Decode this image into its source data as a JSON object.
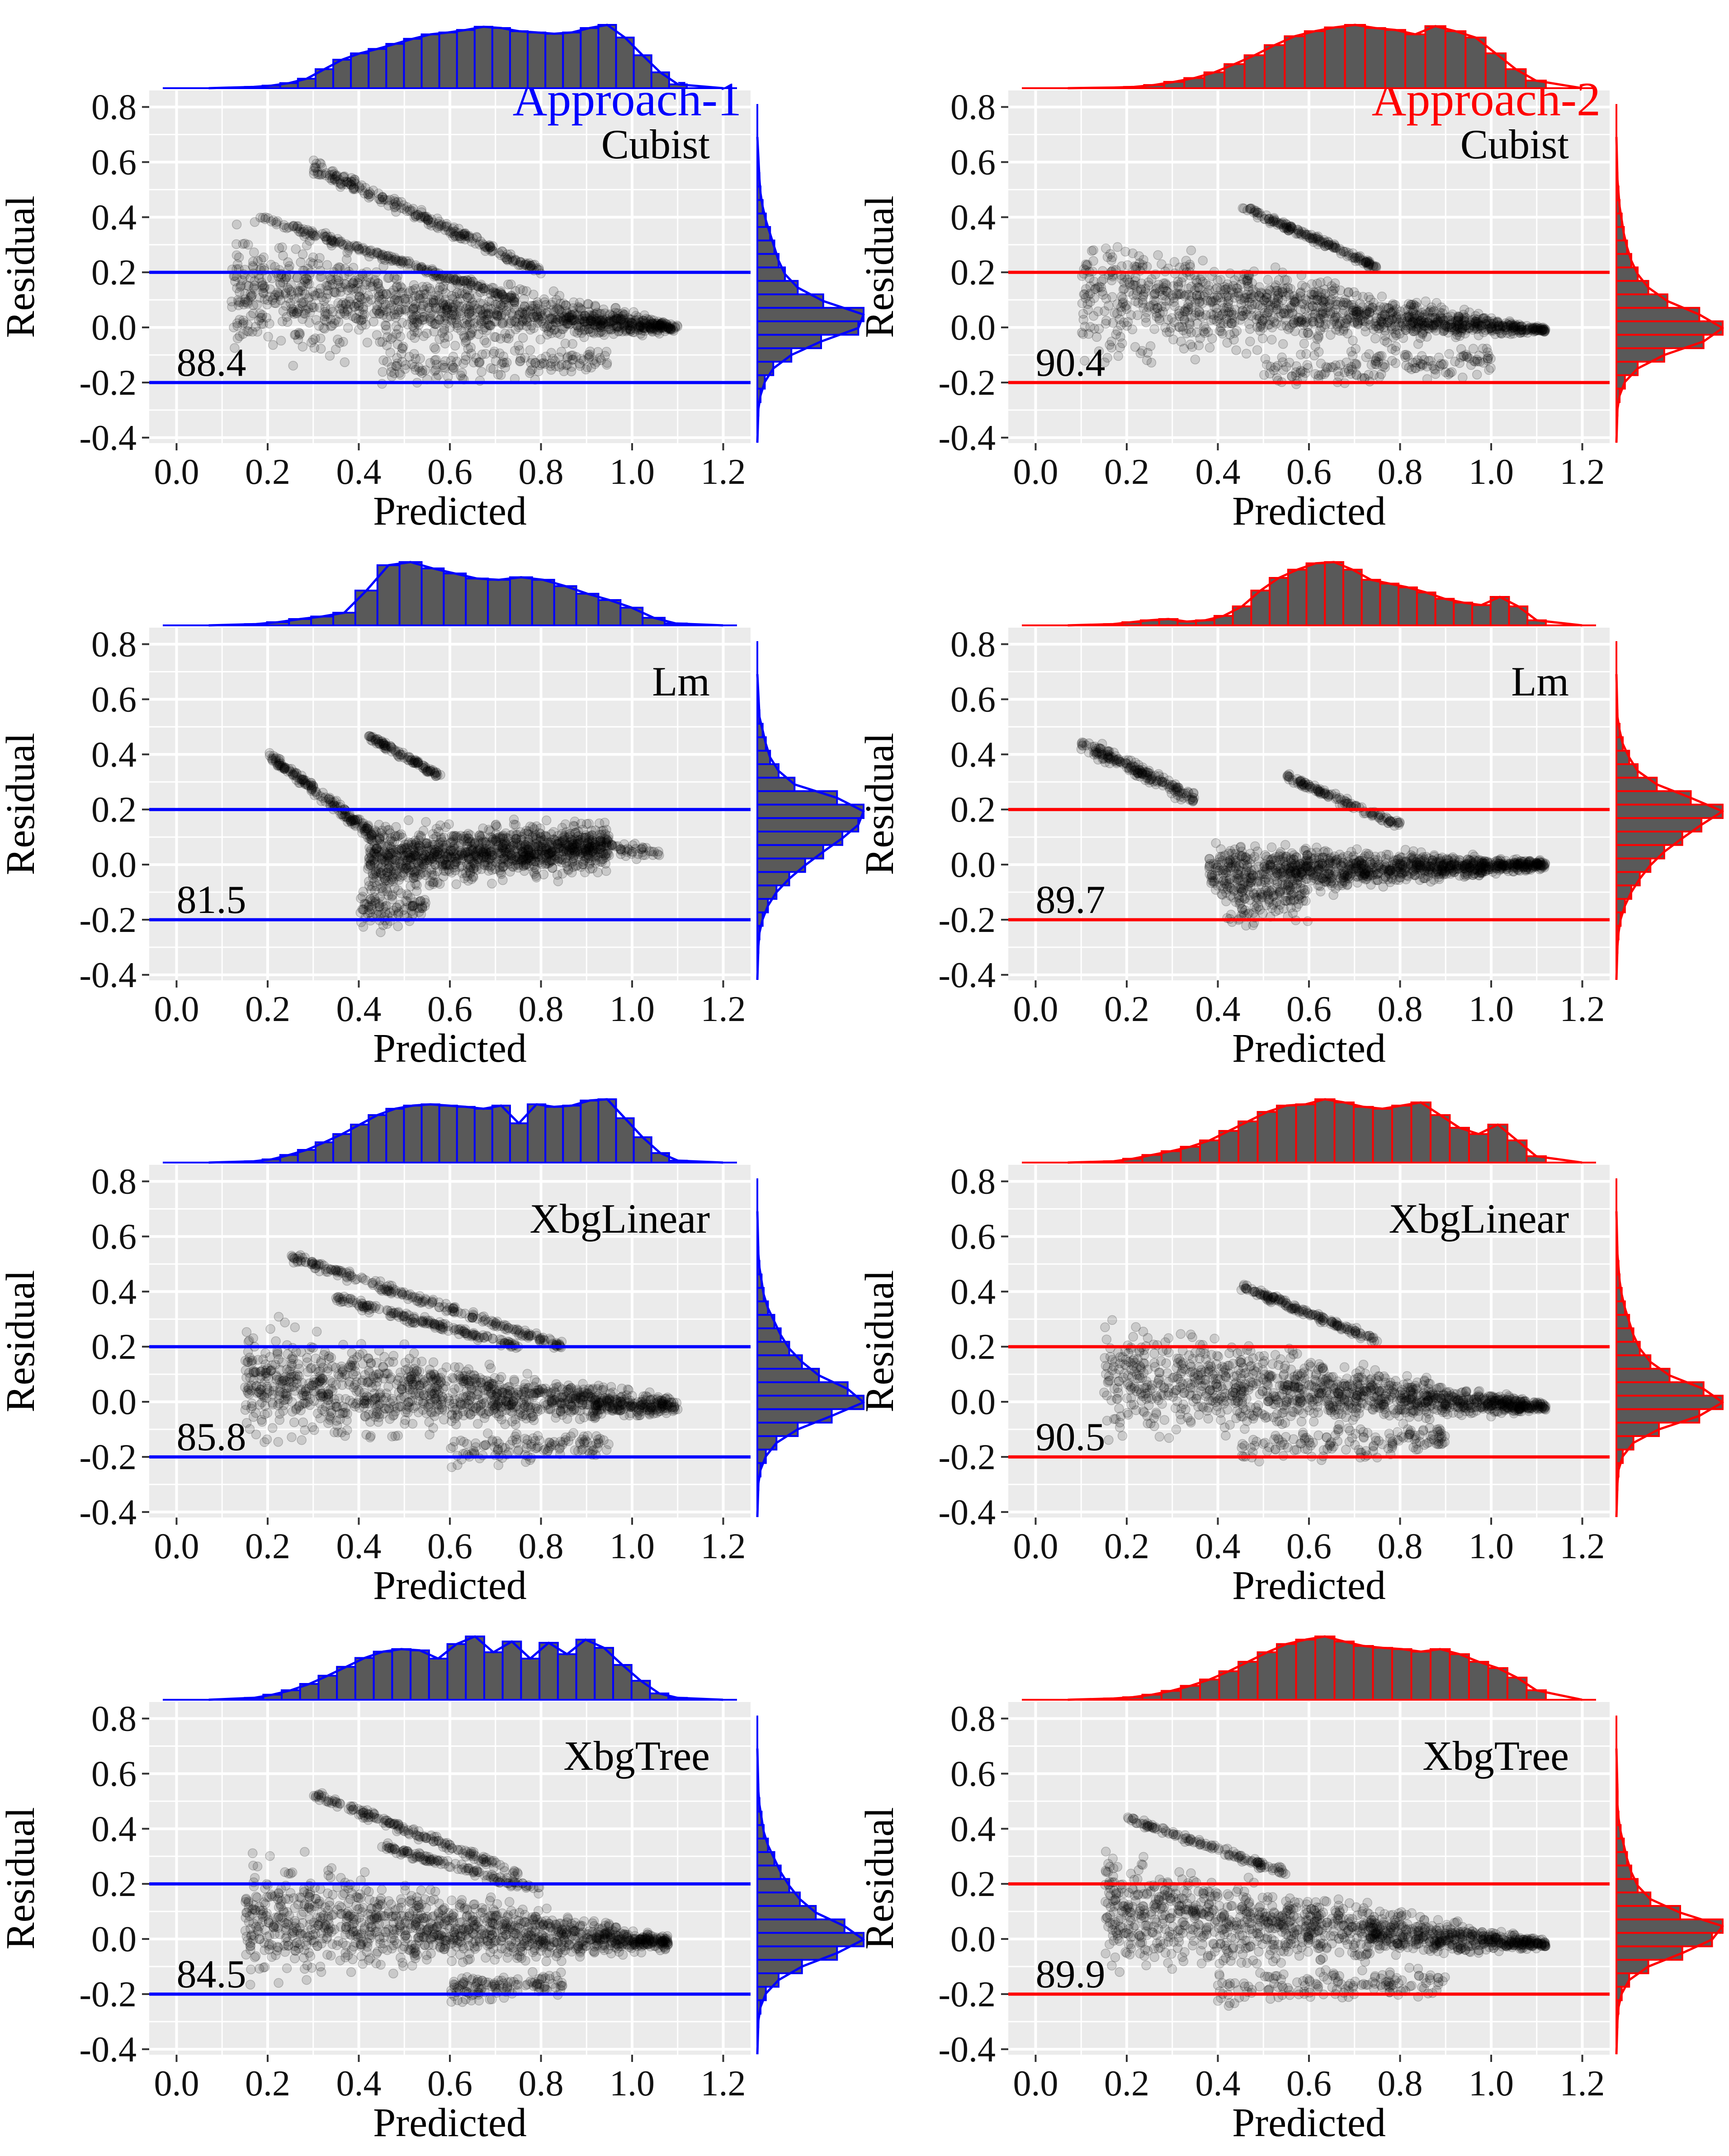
{
  "figure": {
    "colors": {
      "approach1": "#0000ff",
      "approach2": "#ff0000",
      "panel_bg": "#ebebeb",
      "grid": "#ffffff",
      "point": "#000000",
      "bar_fill": "#595959"
    },
    "x_axis_label": "Predicted",
    "y_axis_label": "Residual"
  },
  "chart_data": [
    {
      "type": "scatter",
      "approach": "Approach-1",
      "model": "Cubist",
      "metric": "88.4",
      "color": "#0000ff",
      "xlabel": "Predicted",
      "ylabel": "Residual",
      "xlim": [
        -0.06,
        1.26
      ],
      "ylim": [
        -0.42,
        0.86
      ],
      "x_ticks": [
        0.0,
        0.2,
        0.4,
        0.6,
        0.8,
        1.0,
        1.2
      ],
      "y_ticks": [
        -0.4,
        -0.2,
        0.0,
        0.2,
        0.4,
        0.6,
        0.8
      ],
      "x_tick_labels": [
        "0.0",
        "0.2",
        "0.4",
        "0.6",
        "0.8",
        "1.0",
        "1.2"
      ],
      "y_tick_labels": [
        "-0.4",
        "-0.2",
        "0.0",
        "0.2",
        "0.4",
        "0.6",
        "0.8"
      ],
      "hlines": [
        0.2,
        -0.2
      ],
      "top_hist": [
        0.02,
        0.04,
        0.08,
        0.15,
        0.3,
        0.45,
        0.55,
        0.62,
        0.7,
        0.78,
        0.85,
        0.88,
        0.92,
        0.97,
        0.95,
        0.9,
        0.88,
        0.86,
        0.88,
        0.95,
        1.0,
        0.8,
        0.52,
        0.25,
        0.06
      ],
      "right_hist": [
        0.01,
        0.03,
        0.07,
        0.15,
        0.32,
        0.6,
        0.95,
        1.0,
        0.62,
        0.38,
        0.26,
        0.2,
        0.16,
        0.12,
        0.08,
        0.05,
        0.03,
        0.02
      ],
      "point_bands": [
        {
          "x0": 0.12,
          "x1": 1.1,
          "ya": -0.2,
          "yb": 0.45,
          "yc": -0.02,
          "yd": 0.02,
          "n": 1200
        },
        {
          "x0": 0.3,
          "x1": 0.8,
          "ya": 0.55,
          "yb": 0.62,
          "yc": 0.18,
          "yd": 0.22,
          "n": 240
        },
        {
          "x0": 0.18,
          "x1": 0.75,
          "ya": 0.38,
          "yb": 0.42,
          "yc": 0.08,
          "yd": 0.12,
          "n": 200
        },
        {
          "x0": 0.45,
          "x1": 0.95,
          "ya": -0.24,
          "yb": -0.05,
          "yc": -0.2,
          "yd": -0.04,
          "n": 160
        }
      ]
    },
    {
      "type": "scatter",
      "approach": "Approach-2",
      "model": "Cubist",
      "metric": "90.4",
      "color": "#ff0000",
      "xlabel": "Predicted",
      "ylabel": "Residual",
      "xlim": [
        -0.06,
        1.26
      ],
      "ylim": [
        -0.42,
        0.86
      ],
      "x_ticks": [
        0.0,
        0.2,
        0.4,
        0.6,
        0.8,
        1.0,
        1.2
      ],
      "y_ticks": [
        -0.4,
        -0.2,
        0.0,
        0.2,
        0.4,
        0.6,
        0.8
      ],
      "x_tick_labels": [
        "0.0",
        "0.2",
        "0.4",
        "0.6",
        "0.8",
        "1.0",
        "1.2"
      ],
      "y_tick_labels": [
        "-0.4",
        "-0.2",
        "0.0",
        "0.2",
        "0.4",
        "0.6",
        "0.8"
      ],
      "hlines": [
        0.2,
        -0.2
      ],
      "top_hist": [
        0.01,
        0.02,
        0.05,
        0.1,
        0.16,
        0.25,
        0.38,
        0.52,
        0.68,
        0.82,
        0.9,
        0.96,
        1.0,
        0.95,
        0.92,
        0.85,
        0.98,
        0.9,
        0.8,
        0.55,
        0.3,
        0.12
      ],
      "right_hist": [
        0.01,
        0.03,
        0.08,
        0.2,
        0.45,
        0.82,
        1.0,
        0.78,
        0.48,
        0.3,
        0.2,
        0.14,
        0.1,
        0.07,
        0.05,
        0.03,
        0.02,
        0.01
      ],
      "point_bands": [
        {
          "x0": 0.1,
          "x1": 1.12,
          "ya": -0.18,
          "yb": 0.42,
          "yc": -0.02,
          "yd": 0.0,
          "n": 1200
        },
        {
          "x0": 0.45,
          "x1": 0.75,
          "ya": 0.42,
          "yb": 0.46,
          "yc": 0.2,
          "yd": 0.24,
          "n": 160
        },
        {
          "x0": 0.5,
          "x1": 1.0,
          "ya": -0.26,
          "yb": -0.06,
          "yc": -0.2,
          "yd": -0.05,
          "n": 160
        }
      ]
    },
    {
      "type": "scatter",
      "approach": "Approach-1",
      "model": "Lm",
      "metric": "81.5",
      "color": "#0000ff",
      "xlabel": "Predicted",
      "ylabel": "Residual",
      "xlim": [
        -0.06,
        1.26
      ],
      "ylim": [
        -0.42,
        0.86
      ],
      "x_ticks": [
        0.0,
        0.2,
        0.4,
        0.6,
        0.8,
        1.0,
        1.2
      ],
      "y_ticks": [
        -0.4,
        -0.2,
        0.0,
        0.2,
        0.4,
        0.6,
        0.8
      ],
      "x_tick_labels": [
        "0.0",
        "0.2",
        "0.4",
        "0.6",
        "0.8",
        "1.0",
        "1.2"
      ],
      "y_tick_labels": [
        "-0.4",
        "-0.2",
        "0.0",
        "0.2",
        "0.4",
        "0.6",
        "0.8"
      ],
      "hlines": [
        0.2,
        -0.2
      ],
      "top_hist": [
        0.02,
        0.05,
        0.1,
        0.14,
        0.2,
        0.55,
        0.95,
        1.0,
        0.9,
        0.82,
        0.74,
        0.72,
        0.76,
        0.72,
        0.62,
        0.5,
        0.4,
        0.28,
        0.12,
        0.03
      ],
      "right_hist": [
        0.01,
        0.02,
        0.05,
        0.1,
        0.18,
        0.3,
        0.45,
        0.62,
        0.8,
        0.95,
        1.0,
        0.75,
        0.35,
        0.2,
        0.12,
        0.08,
        0.05,
        0.02
      ],
      "point_bands": [
        {
          "x0": 0.42,
          "x1": 0.95,
          "ya": -0.15,
          "yb": 0.18,
          "yc": -0.05,
          "yd": 0.18,
          "n": 1100
        },
        {
          "x0": 0.2,
          "x1": 0.45,
          "ya": 0.38,
          "yb": 0.42,
          "yc": 0.05,
          "yd": 0.12,
          "n": 180
        },
        {
          "x0": 0.42,
          "x1": 0.58,
          "ya": 0.45,
          "yb": 0.48,
          "yc": 0.3,
          "yd": 0.34,
          "n": 100
        },
        {
          "x0": 0.4,
          "x1": 0.55,
          "ya": -0.28,
          "yb": -0.05,
          "yc": -0.22,
          "yd": -0.05,
          "n": 100
        },
        {
          "x0": 0.9,
          "x1": 1.06,
          "ya": 0.0,
          "yb": 0.14,
          "yc": 0.02,
          "yd": 0.06,
          "n": 60
        }
      ]
    },
    {
      "type": "scatter",
      "approach": "Approach-2",
      "model": "Lm",
      "metric": "89.7",
      "color": "#ff0000",
      "xlabel": "Predicted",
      "ylabel": "Residual",
      "xlim": [
        -0.06,
        1.26
      ],
      "ylim": [
        -0.42,
        0.86
      ],
      "x_ticks": [
        0.0,
        0.2,
        0.4,
        0.6,
        0.8,
        1.0,
        1.2
      ],
      "y_ticks": [
        -0.4,
        -0.2,
        0.0,
        0.2,
        0.4,
        0.6,
        0.8
      ],
      "x_tick_labels": [
        "0.0",
        "0.2",
        "0.4",
        "0.6",
        "0.8",
        "1.0",
        "1.2"
      ],
      "y_tick_labels": [
        "-0.4",
        "-0.2",
        "0.0",
        "0.2",
        "0.4",
        "0.6",
        "0.8"
      ],
      "hlines": [
        0.2,
        -0.2
      ],
      "top_hist": [
        0.02,
        0.05,
        0.08,
        0.1,
        0.06,
        0.08,
        0.15,
        0.3,
        0.55,
        0.75,
        0.88,
        0.98,
        1.0,
        0.88,
        0.72,
        0.66,
        0.6,
        0.52,
        0.42,
        0.36,
        0.32,
        0.45,
        0.3,
        0.08
      ],
      "right_hist": [
        0.01,
        0.02,
        0.04,
        0.08,
        0.14,
        0.22,
        0.32,
        0.45,
        0.62,
        0.8,
        1.0,
        0.7,
        0.38,
        0.2,
        0.12,
        0.06,
        0.03,
        0.01
      ],
      "point_bands": [
        {
          "x0": 0.38,
          "x1": 1.12,
          "ya": -0.18,
          "yb": 0.12,
          "yc": -0.02,
          "yd": 0.02,
          "n": 1100
        },
        {
          "x0": 0.1,
          "x1": 0.35,
          "ya": 0.4,
          "yb": 0.48,
          "yc": 0.2,
          "yd": 0.28,
          "n": 180
        },
        {
          "x0": 0.55,
          "x1": 0.8,
          "ya": 0.3,
          "yb": 0.34,
          "yc": 0.12,
          "yd": 0.16,
          "n": 120
        },
        {
          "x0": 0.42,
          "x1": 0.6,
          "ya": -0.26,
          "yb": -0.05,
          "yc": -0.22,
          "yd": -0.05,
          "n": 90
        }
      ]
    },
    {
      "type": "scatter",
      "approach": "Approach-1",
      "model": "XbgLinear",
      "metric": "85.8",
      "color": "#0000ff",
      "xlabel": "Predicted",
      "ylabel": "Residual",
      "xlim": [
        -0.06,
        1.26
      ],
      "ylim": [
        -0.42,
        0.86
      ],
      "x_ticks": [
        0.0,
        0.2,
        0.4,
        0.6,
        0.8,
        1.0,
        1.2
      ],
      "y_ticks": [
        -0.4,
        -0.2,
        0.0,
        0.2,
        0.4,
        0.6,
        0.8
      ],
      "x_tick_labels": [
        "0.0",
        "0.2",
        "0.4",
        "0.6",
        "0.8",
        "1.0",
        "1.2"
      ],
      "y_tick_labels": [
        "-0.4",
        "-0.2",
        "0.0",
        "0.2",
        "0.4",
        "0.6",
        "0.8"
      ],
      "hlines": [
        0.2,
        -0.2
      ],
      "top_hist": [
        0.02,
        0.05,
        0.12,
        0.2,
        0.32,
        0.45,
        0.6,
        0.75,
        0.85,
        0.9,
        0.92,
        0.9,
        0.88,
        0.85,
        0.9,
        0.62,
        0.92,
        0.88,
        0.9,
        0.98,
        1.0,
        0.7,
        0.4,
        0.15,
        0.03
      ],
      "right_hist": [
        0.01,
        0.03,
        0.08,
        0.18,
        0.38,
        0.7,
        1.0,
        0.85,
        0.58,
        0.42,
        0.3,
        0.22,
        0.16,
        0.1,
        0.06,
        0.04,
        0.02,
        0.01
      ],
      "point_bands": [
        {
          "x0": 0.15,
          "x1": 1.1,
          "ya": -0.22,
          "yb": 0.35,
          "yc": -0.05,
          "yd": 0.02,
          "n": 1200
        },
        {
          "x0": 0.25,
          "x1": 0.85,
          "ya": 0.5,
          "yb": 0.55,
          "yc": 0.18,
          "yd": 0.22,
          "n": 220
        },
        {
          "x0": 0.35,
          "x1": 0.75,
          "ya": 0.35,
          "yb": 0.4,
          "yc": 0.18,
          "yd": 0.22,
          "n": 160
        },
        {
          "x0": 0.6,
          "x1": 0.95,
          "ya": -0.25,
          "yb": -0.1,
          "yc": -0.2,
          "yd": -0.1,
          "n": 120
        }
      ]
    },
    {
      "type": "scatter",
      "approach": "Approach-2",
      "model": "XbgLinear",
      "metric": "90.5",
      "color": "#ff0000",
      "xlabel": "Predicted",
      "ylabel": "Residual",
      "xlim": [
        -0.06,
        1.26
      ],
      "ylim": [
        -0.42,
        0.86
      ],
      "x_ticks": [
        0.0,
        0.2,
        0.4,
        0.6,
        0.8,
        1.0,
        1.2
      ],
      "y_ticks": [
        -0.4,
        -0.2,
        0.0,
        0.2,
        0.4,
        0.6,
        0.8
      ],
      "x_tick_labels": [
        "0.0",
        "0.2",
        "0.4",
        "0.6",
        "0.8",
        "1.0",
        "1.2"
      ],
      "y_tick_labels": [
        "-0.4",
        "-0.2",
        "0.0",
        "0.2",
        "0.4",
        "0.6",
        "0.8"
      ],
      "hlines": [
        0.2,
        -0.2
      ],
      "top_hist": [
        0.02,
        0.06,
        0.12,
        0.18,
        0.25,
        0.35,
        0.5,
        0.65,
        0.8,
        0.9,
        0.92,
        1.0,
        0.95,
        0.88,
        0.85,
        0.9,
        0.95,
        0.75,
        0.55,
        0.45,
        0.6,
        0.35,
        0.1
      ],
      "right_hist": [
        0.01,
        0.02,
        0.06,
        0.16,
        0.4,
        0.78,
        1.0,
        0.82,
        0.5,
        0.32,
        0.22,
        0.16,
        0.12,
        0.08,
        0.05,
        0.03,
        0.02,
        0.01
      ],
      "point_bands": [
        {
          "x0": 0.15,
          "x1": 1.12,
          "ya": -0.2,
          "yb": 0.38,
          "yc": -0.04,
          "yd": 0.0,
          "n": 1200
        },
        {
          "x0": 0.45,
          "x1": 0.75,
          "ya": 0.4,
          "yb": 0.44,
          "yc": 0.2,
          "yd": 0.24,
          "n": 150
        },
        {
          "x0": 0.45,
          "x1": 0.9,
          "ya": -0.26,
          "yb": -0.08,
          "yc": -0.2,
          "yd": -0.06,
          "n": 150
        }
      ]
    },
    {
      "type": "scatter",
      "approach": "Approach-1",
      "model": "XbgTree",
      "metric": "84.5",
      "color": "#0000ff",
      "xlabel": "Predicted",
      "ylabel": "Residual",
      "xlim": [
        -0.06,
        1.26
      ],
      "ylim": [
        -0.42,
        0.86
      ],
      "x_ticks": [
        0.0,
        0.2,
        0.4,
        0.6,
        0.8,
        1.0,
        1.2
      ],
      "y_ticks": [
        -0.4,
        -0.2,
        0.0,
        0.2,
        0.4,
        0.6,
        0.8
      ],
      "x_tick_labels": [
        "0.0",
        "0.2",
        "0.4",
        "0.6",
        "0.8",
        "1.0",
        "1.2"
      ],
      "y_tick_labels": [
        "-0.4",
        "-0.2",
        "0.0",
        "0.2",
        "0.4",
        "0.6",
        "0.8"
      ],
      "hlines": [
        0.2,
        -0.2
      ],
      "top_hist": [
        0.03,
        0.08,
        0.15,
        0.25,
        0.38,
        0.52,
        0.66,
        0.76,
        0.8,
        0.78,
        0.65,
        0.88,
        1.0,
        0.75,
        0.92,
        0.65,
        0.9,
        0.72,
        0.95,
        0.82,
        0.55,
        0.3,
        0.1,
        0.03
      ],
      "right_hist": [
        0.01,
        0.03,
        0.08,
        0.2,
        0.42,
        0.75,
        1.0,
        0.82,
        0.55,
        0.4,
        0.3,
        0.22,
        0.16,
        0.1,
        0.06,
        0.04,
        0.02,
        0.01
      ],
      "point_bands": [
        {
          "x0": 0.15,
          "x1": 1.08,
          "ya": -0.22,
          "yb": 0.38,
          "yc": -0.05,
          "yd": 0.02,
          "n": 1200
        },
        {
          "x0": 0.3,
          "x1": 0.75,
          "ya": 0.5,
          "yb": 0.55,
          "yc": 0.22,
          "yd": 0.26,
          "n": 160
        },
        {
          "x0": 0.45,
          "x1": 0.8,
          "ya": 0.32,
          "yb": 0.36,
          "yc": 0.15,
          "yd": 0.2,
          "n": 120
        },
        {
          "x0": 0.6,
          "x1": 0.85,
          "ya": -0.25,
          "yb": -0.12,
          "yc": -0.22,
          "yd": -0.1,
          "n": 120
        }
      ]
    },
    {
      "type": "scatter",
      "approach": "Approach-2",
      "model": "XbgTree",
      "metric": "89.9",
      "color": "#ff0000",
      "xlabel": "Predicted",
      "ylabel": "Residual",
      "xlim": [
        -0.06,
        1.26
      ],
      "ylim": [
        -0.42,
        0.86
      ],
      "x_ticks": [
        0.0,
        0.2,
        0.4,
        0.6,
        0.8,
        1.0,
        1.2
      ],
      "y_ticks": [
        -0.4,
        -0.2,
        0.0,
        0.2,
        0.4,
        0.6,
        0.8
      ],
      "x_tick_labels": [
        "0.0",
        "0.2",
        "0.4",
        "0.6",
        "0.8",
        "1.0",
        "1.2"
      ],
      "y_tick_labels": [
        "-0.4",
        "-0.2",
        "0.0",
        "0.2",
        "0.4",
        "0.6",
        "0.8"
      ],
      "hlines": [
        0.2,
        -0.2
      ],
      "top_hist": [
        0.02,
        0.04,
        0.08,
        0.14,
        0.22,
        0.32,
        0.45,
        0.6,
        0.75,
        0.88,
        0.95,
        1.0,
        0.92,
        0.85,
        0.82,
        0.8,
        0.76,
        0.8,
        0.72,
        0.6,
        0.5,
        0.35,
        0.15
      ],
      "right_hist": [
        0.01,
        0.02,
        0.05,
        0.12,
        0.3,
        0.62,
        0.9,
        1.0,
        0.6,
        0.32,
        0.2,
        0.14,
        0.1,
        0.07,
        0.04,
        0.02,
        0.01,
        0.01
      ],
      "point_bands": [
        {
          "x0": 0.15,
          "x1": 1.12,
          "ya": -0.2,
          "yb": 0.38,
          "yc": -0.04,
          "yd": 0.0,
          "n": 1200
        },
        {
          "x0": 0.2,
          "x1": 0.55,
          "ya": 0.42,
          "yb": 0.46,
          "yc": 0.22,
          "yd": 0.26,
          "n": 120
        },
        {
          "x0": 0.4,
          "x1": 0.9,
          "ya": -0.28,
          "yb": -0.1,
          "yc": -0.22,
          "yd": -0.08,
          "n": 150
        }
      ]
    }
  ]
}
